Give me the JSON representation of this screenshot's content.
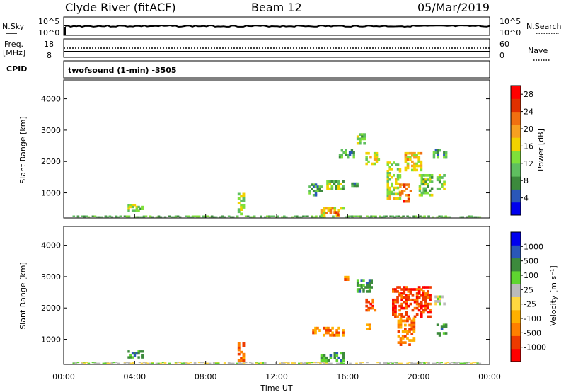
{
  "header": {
    "station": "Clyde River (fitACF)",
    "beam": "Beam 12",
    "date": "05/Mar/2019"
  },
  "noise_panel": {
    "left_label": "N.Sky",
    "right_label": "N.Search",
    "left_ticks": [
      "10^5",
      "10^0"
    ],
    "right_ticks": [
      "10^5",
      "10^0"
    ]
  },
  "freq_panel": {
    "left_label_1": "Freq.",
    "left_label_2": "[MHz]",
    "right_label": "Nave",
    "left_ticks": [
      "18",
      "8"
    ],
    "right_ticks": [
      "60",
      "0"
    ]
  },
  "cpid_panel": {
    "label": "CPID",
    "text": "twofsound (1-min) -3505"
  },
  "colors": {
    "power_scale": [
      "#0000ee",
      "#2a57b8",
      "#3c8a3c",
      "#5fbf5f",
      "#7fe03a",
      "#f2d200",
      "#f7a020",
      "#f07010",
      "#e03000",
      "#ff0000"
    ],
    "velocity_scale": [
      "#ff0000",
      "#ee3a00",
      "#ff7f00",
      "#ffb000",
      "#ffd840",
      "#bbbbbb",
      "#5fd630",
      "#3c8a3c",
      "#2a57b8",
      "#0000ee"
    ]
  },
  "chart_data": [
    {
      "type": "heatmap",
      "name": "power",
      "ylabel": "Slant Range [km]",
      "yticks": [
        "1000",
        "2000",
        "3000",
        "4000"
      ],
      "ylim": [
        200,
        4600
      ],
      "colorbar_label": "Power [dB]",
      "colorbar_ticks": [
        "4",
        "8",
        "12",
        "16",
        "20",
        "24",
        "28"
      ],
      "colorbar_range": [
        0,
        30
      ],
      "x_hours_range": [
        0,
        24
      ],
      "patches": [
        {
          "t": 0.5,
          "t2": 23.5,
          "r": 230,
          "r2": 280,
          "v": 10
        },
        {
          "t": 3.6,
          "t2": 4.5,
          "r": 400,
          "r2": 650,
          "v": 12
        },
        {
          "t": 4.0,
          "t2": 4.4,
          "r": 250,
          "r2": 400,
          "v": 20
        },
        {
          "t": 9.8,
          "t2": 10.2,
          "r": 300,
          "r2": 1000,
          "v": 14
        },
        {
          "t": 14.5,
          "t2": 15.8,
          "r": 250,
          "r2": 550,
          "v": 18
        },
        {
          "t": 15.2,
          "t2": 15.5,
          "r": 280,
          "r2": 420,
          "v": 24
        },
        {
          "t": 13.8,
          "t2": 14.6,
          "r": 900,
          "r2": 1300,
          "v": 8
        },
        {
          "t": 14.8,
          "t2": 15.8,
          "r": 1100,
          "r2": 1400,
          "v": 12
        },
        {
          "t": 15.5,
          "t2": 16.4,
          "r": 2100,
          "r2": 2400,
          "v": 8
        },
        {
          "t": 16.5,
          "t2": 17.0,
          "r": 2550,
          "r2": 2900,
          "v": 12
        },
        {
          "t": 17.0,
          "t2": 17.8,
          "r": 1900,
          "r2": 2300,
          "v": 16
        },
        {
          "t": 18.2,
          "t2": 19.0,
          "r": 800,
          "r2": 2000,
          "v": 14
        },
        {
          "t": 18.9,
          "t2": 19.6,
          "r": 700,
          "r2": 1300,
          "v": 24
        },
        {
          "t": 19.2,
          "t2": 20.2,
          "r": 1700,
          "r2": 2300,
          "v": 18
        },
        {
          "t": 20.0,
          "t2": 20.8,
          "r": 900,
          "r2": 1600,
          "v": 12
        },
        {
          "t": 20.8,
          "t2": 21.6,
          "r": 2100,
          "r2": 2400,
          "v": 8
        },
        {
          "t": 21.0,
          "t2": 21.5,
          "r": 1100,
          "r2": 1600,
          "v": 12
        },
        {
          "t": 16.2,
          "t2": 16.6,
          "r": 1200,
          "r2": 1400,
          "v": 8
        }
      ]
    },
    {
      "type": "heatmap",
      "name": "velocity",
      "ylabel": "Slant Range [km]",
      "yticks": [
        "1000",
        "2000",
        "3000",
        "4000"
      ],
      "ylim": [
        200,
        4600
      ],
      "colorbar_label": "Velocity [m s⁻¹]",
      "colorbar_ticks": [
        "1000",
        "500",
        "100",
        "25",
        "-25",
        "-100",
        "-500",
        "-1000"
      ],
      "x_hours_range": [
        0,
        24
      ],
      "xlabel": "Time UT",
      "xticks": [
        "00:00",
        "04:00",
        "08:00",
        "12:00",
        "16:00",
        "20:00",
        "00:00"
      ],
      "patches": [
        {
          "t": 0.5,
          "t2": 23.5,
          "r": 230,
          "r2": 280,
          "v": 5
        },
        {
          "t": 3.6,
          "t2": 4.5,
          "r": 400,
          "r2": 650,
          "v": 7
        },
        {
          "t": 9.8,
          "t2": 10.2,
          "r": 300,
          "r2": 900,
          "v": 2
        },
        {
          "t": 14.0,
          "t2": 15.8,
          "r": 1100,
          "r2": 1400,
          "v": 2
        },
        {
          "t": 14.5,
          "t2": 15.8,
          "r": 300,
          "r2": 600,
          "v": 7
        },
        {
          "t": 15.8,
          "t2": 16.2,
          "r": 2800,
          "r2": 3100,
          "v": 2
        },
        {
          "t": 16.5,
          "t2": 17.4,
          "r": 2500,
          "r2": 2900,
          "v": 7
        },
        {
          "t": 17.0,
          "t2": 17.6,
          "r": 1900,
          "r2": 2300,
          "v": 1
        },
        {
          "t": 18.5,
          "t2": 20.7,
          "r": 1700,
          "r2": 2700,
          "v": 1
        },
        {
          "t": 18.8,
          "t2": 19.8,
          "r": 800,
          "r2": 1700,
          "v": 2
        },
        {
          "t": 20.9,
          "t2": 21.5,
          "r": 2100,
          "r2": 2400,
          "v": 5
        },
        {
          "t": 21.0,
          "t2": 21.6,
          "r": 1100,
          "r2": 1500,
          "v": 7
        },
        {
          "t": 16.8,
          "t2": 17.3,
          "r": 1300,
          "r2": 1500,
          "v": 3
        }
      ]
    }
  ]
}
